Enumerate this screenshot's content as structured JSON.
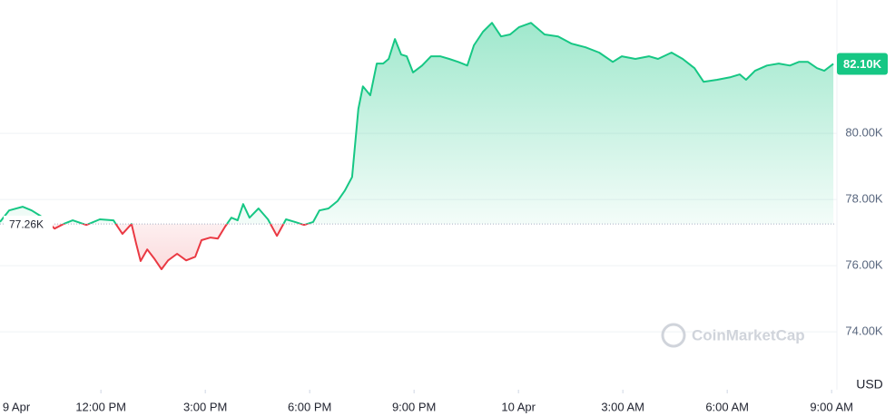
{
  "chart_data": {
    "type": "line",
    "unit_label": "USD",
    "watermark": "CoinMarketCap",
    "xlim": [
      9.1,
      33.1
    ],
    "xticks": [
      {
        "value": 9,
        "label": "9 Apr"
      },
      {
        "value": 12,
        "label": "12:00 PM"
      },
      {
        "value": 15,
        "label": "3:00 PM"
      },
      {
        "value": 18,
        "label": "6:00 PM"
      },
      {
        "value": 21,
        "label": "9:00 PM"
      },
      {
        "value": 24,
        "label": "10 Apr"
      },
      {
        "value": 27,
        "label": "3:00 AM"
      },
      {
        "value": 30,
        "label": "6:00 AM"
      },
      {
        "value": 33,
        "label": "9:00 AM"
      }
    ],
    "ylim": [
      72.25,
      84.03
    ],
    "yticks": [
      {
        "value": 74,
        "label": "74.00K"
      },
      {
        "value": 76,
        "label": "76.00K"
      },
      {
        "value": 78,
        "label": "78.00K"
      },
      {
        "value": 80,
        "label": "80.00K"
      }
    ],
    "grid": true,
    "baseline": {
      "value": 77.26,
      "label": "77.26K"
    },
    "current_price": {
      "value": 82.1,
      "label": "82.10K"
    },
    "up_color": "#16c784",
    "down_color": "#ea3943",
    "x": [
      9.1,
      9.36,
      9.75,
      10.01,
      10.27,
      10.67,
      10.93,
      11.19,
      11.58,
      11.97,
      12.36,
      12.62,
      12.88,
      13.01,
      13.14,
      13.33,
      13.53,
      13.74,
      13.93,
      14.19,
      14.45,
      14.71,
      14.89,
      15.15,
      15.36,
      15.57,
      15.75,
      15.93,
      16.09,
      16.27,
      16.53,
      16.8,
      17.06,
      17.32,
      17.58,
      17.84,
      18.1,
      18.28,
      18.54,
      18.8,
      19.01,
      19.22,
      19.4,
      19.53,
      19.74,
      19.93,
      20.11,
      20.27,
      20.45,
      20.63,
      20.79,
      20.97,
      21.23,
      21.49,
      21.75,
      22.01,
      22.27,
      22.53,
      22.72,
      22.98,
      23.24,
      23.5,
      23.76,
      24.02,
      24.36,
      24.75,
      25.14,
      25.53,
      25.93,
      26.32,
      26.71,
      26.97,
      27.36,
      27.75,
      28.01,
      28.4,
      28.72,
      29.06,
      29.32,
      29.71,
      30.1,
      30.36,
      30.54,
      30.8,
      31.14,
      31.48,
      31.8,
      32.06,
      32.32,
      32.58,
      32.79,
      33.05
    ],
    "values": [
      77.32,
      77.67,
      77.78,
      77.67,
      77.5,
      77.12,
      77.26,
      77.37,
      77.23,
      77.4,
      77.37,
      76.96,
      77.26,
      76.68,
      76.14,
      76.49,
      76.22,
      75.89,
      76.16,
      76.36,
      76.16,
      76.27,
      76.77,
      76.85,
      76.82,
      77.18,
      77.45,
      77.37,
      77.86,
      77.45,
      77.73,
      77.4,
      76.9,
      77.4,
      77.32,
      77.23,
      77.32,
      77.67,
      77.73,
      77.95,
      78.27,
      78.68,
      80.74,
      81.42,
      81.15,
      82.11,
      82.11,
      82.25,
      82.85,
      82.38,
      82.33,
      81.84,
      82.05,
      82.33,
      82.33,
      82.25,
      82.16,
      82.05,
      82.66,
      83.07,
      83.34,
      82.93,
      82.99,
      83.21,
      83.34,
      82.99,
      82.93,
      82.71,
      82.6,
      82.44,
      82.16,
      82.33,
      82.25,
      82.33,
      82.25,
      82.44,
      82.25,
      81.97,
      81.56,
      81.62,
      81.7,
      81.78,
      81.62,
      81.89,
      82.05,
      82.11,
      82.05,
      82.16,
      82.16,
      81.97,
      81.89,
      82.1
    ]
  }
}
